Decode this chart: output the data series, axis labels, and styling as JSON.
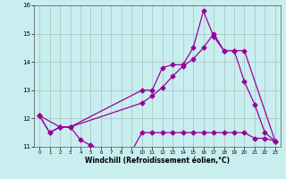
{
  "bg_color": "#c8eef0",
  "grid_color": "#b0c8c8",
  "line_color": "#990099",
  "xlabel": "Windchill (Refroidissement éolien,°C)",
  "xlim": [
    -0.5,
    23.5
  ],
  "ylim": [
    11.0,
    16.0
  ],
  "yticks": [
    11,
    12,
    13,
    14,
    15,
    16
  ],
  "xtick_labels": [
    "0",
    "1",
    "2",
    "3",
    "4",
    "5",
    "6",
    "7",
    "8",
    "9",
    "10",
    "11",
    "12",
    "13",
    "14",
    "15",
    "16",
    "17",
    "18",
    "19",
    "20",
    "21",
    "22",
    "23"
  ],
  "xtick_vals": [
    0,
    1,
    2,
    3,
    4,
    5,
    6,
    7,
    8,
    9,
    10,
    11,
    12,
    13,
    14,
    15,
    16,
    17,
    18,
    19,
    20,
    21,
    22,
    23
  ],
  "series1_x": [
    0,
    1,
    2,
    3,
    4,
    5,
    6,
    7,
    8,
    9,
    10,
    11,
    12,
    13,
    14,
    15,
    16,
    17,
    18,
    19,
    20,
    21,
    22,
    23
  ],
  "series1_y": [
    12.1,
    11.5,
    11.7,
    11.7,
    11.25,
    11.05,
    10.9,
    10.82,
    10.75,
    10.85,
    11.5,
    11.5,
    11.5,
    11.5,
    11.5,
    11.5,
    11.5,
    11.5,
    11.5,
    11.5,
    11.5,
    11.3,
    11.3,
    11.2
  ],
  "series2_x": [
    0,
    1,
    2,
    3,
    10,
    11,
    12,
    13,
    14,
    15,
    16,
    17,
    18,
    19,
    20,
    21,
    22,
    23
  ],
  "series2_y": [
    12.1,
    11.5,
    11.7,
    11.7,
    13.0,
    13.0,
    13.8,
    13.9,
    13.9,
    14.5,
    15.8,
    14.9,
    14.4,
    14.4,
    13.3,
    12.5,
    11.5,
    11.2
  ],
  "series3_x": [
    0,
    2,
    3,
    10,
    11,
    12,
    13,
    14,
    15,
    16,
    17,
    18,
    19,
    20,
    23
  ],
  "series3_y": [
    12.1,
    11.7,
    11.7,
    12.55,
    12.8,
    13.1,
    13.5,
    13.85,
    14.1,
    14.5,
    15.0,
    14.4,
    14.4,
    14.4,
    11.2
  ]
}
